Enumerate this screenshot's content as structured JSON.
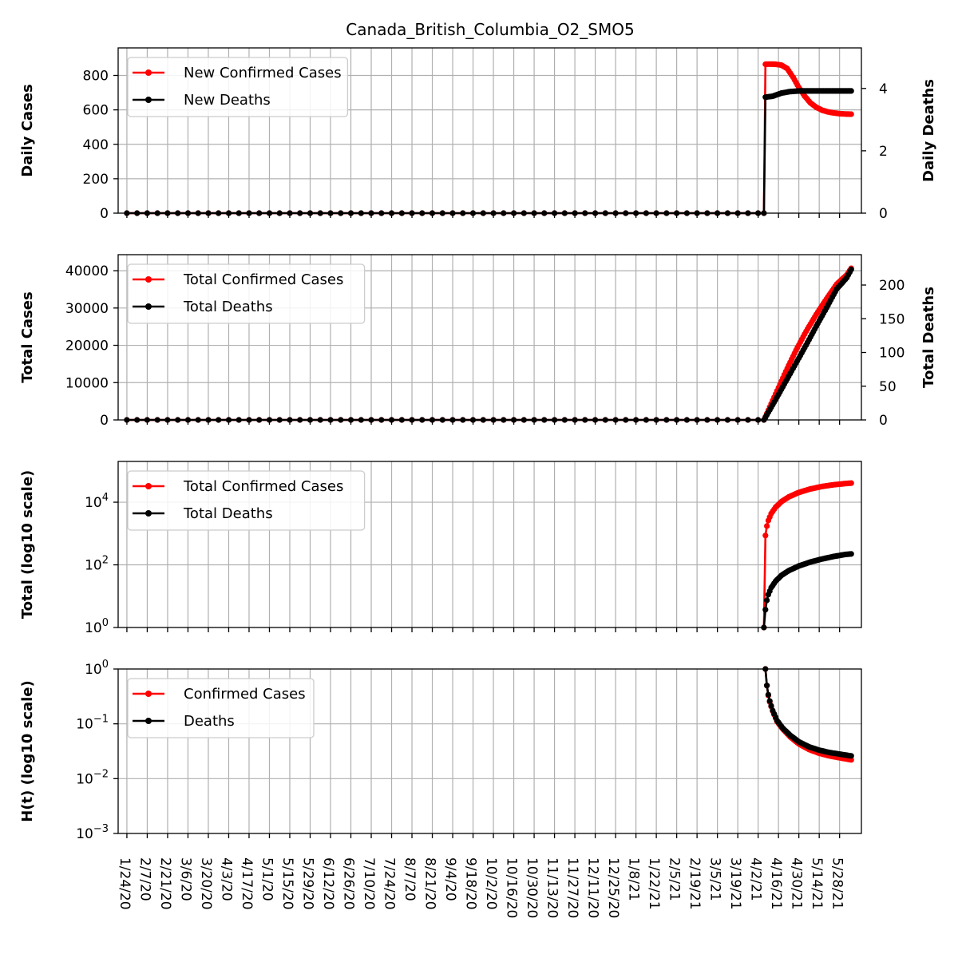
{
  "figure": {
    "title": "Canada_British_Columbia_O2_SMO5"
  },
  "chart_data": [
    {
      "type": "line",
      "id": "daily",
      "ylabel_left": "Daily Cases",
      "ylabel_right": "Daily Deaths",
      "ylim_left": [
        0,
        960
      ],
      "ylim_right": [
        0,
        5.3
      ],
      "yticks_left": [
        0,
        200,
        400,
        600,
        800
      ],
      "yticks_right": [
        0,
        2,
        4
      ],
      "grid": true,
      "legend_position": "upper-left",
      "x_dates": [
        "1/24/20",
        "2/7/20",
        "2/21/20",
        "3/6/20",
        "3/20/20",
        "4/3/20",
        "4/17/20",
        "5/1/20",
        "5/15/20",
        "5/29/20",
        "6/12/20",
        "6/26/20",
        "7/10/20",
        "7/24/20",
        "8/7/20",
        "8/21/20",
        "9/4/20",
        "9/18/20",
        "10/2/20",
        "10/16/20",
        "10/30/20",
        "11/13/20",
        "11/27/20",
        "12/11/20",
        "12/25/20",
        "1/8/21",
        "1/22/21",
        "2/5/21",
        "2/19/21",
        "3/5/21",
        "3/19/21",
        "4/2/21",
        "4/16/21",
        "4/30/21",
        "5/14/21",
        "5/28/21"
      ],
      "series": [
        {
          "name": "New Confirmed Cases",
          "axis": "left",
          "color": "#ff0000",
          "x": [
            "1/24/20",
            "4/6/21",
            "4/7/21",
            "4/10/21",
            "4/14/21",
            "4/18/21",
            "4/22/21",
            "4/26/21",
            "4/30/21",
            "5/4/21",
            "5/8/21",
            "5/12/21",
            "5/16/21",
            "5/20/21",
            "5/24/21",
            "5/28/21",
            "6/1/21",
            "6/5/21"
          ],
          "y": [
            0,
            0,
            865,
            866,
            865,
            860,
            840,
            790,
            730,
            680,
            640,
            615,
            598,
            588,
            582,
            578,
            576,
            575
          ]
        },
        {
          "name": "New Deaths",
          "axis": "right",
          "color": "#000000",
          "x": [
            "1/24/20",
            "4/6/21",
            "4/7/21",
            "4/12/21",
            "4/18/21",
            "4/24/21",
            "5/1/21",
            "5/10/21",
            "5/20/21",
            "6/5/21"
          ],
          "y": [
            0,
            0,
            3.72,
            3.75,
            3.85,
            3.9,
            3.92,
            3.92,
            3.92,
            3.92
          ]
        }
      ]
    },
    {
      "type": "line",
      "id": "total",
      "ylabel_left": "Total Cases",
      "ylabel_right": "Total Deaths",
      "ylim_left": [
        0,
        44300
      ],
      "ylim_right": [
        0,
        245
      ],
      "yticks_left": [
        0,
        10000,
        20000,
        30000,
        40000
      ],
      "yticks_right": [
        0,
        50,
        100,
        150,
        200
      ],
      "grid": true,
      "legend_position": "upper-left",
      "series": [
        {
          "name": "Total Confirmed Cases",
          "axis": "left",
          "color": "#ff0000",
          "x": [
            "1/24/20",
            "4/6/21",
            "4/7/21",
            "4/14/21",
            "4/21/21",
            "4/28/21",
            "5/5/21",
            "5/12/21",
            "5/19/21",
            "5/26/21",
            "6/2/21",
            "6/5/21"
          ],
          "y": [
            0,
            0,
            865,
            6920,
            12970,
            18650,
            23760,
            28300,
            32440,
            36380,
            38910,
            40640
          ]
        },
        {
          "name": "Total Deaths",
          "axis": "right",
          "color": "#000000",
          "x": [
            "1/24/20",
            "4/6/21",
            "4/7/21",
            "4/14/21",
            "4/21/21",
            "4/28/21",
            "5/5/21",
            "5/12/21",
            "5/19/21",
            "5/26/21",
            "6/2/21",
            "6/5/21"
          ],
          "y": [
            0,
            0,
            3.7,
            30,
            57,
            84,
            111,
            139,
            166,
            194,
            211,
            223
          ]
        }
      ]
    },
    {
      "type": "line",
      "id": "total_log",
      "ylabel_left": "Total (log10 scale)",
      "yscale": "log",
      "ylim_left": [
        1,
        200000
      ],
      "yticks_left": [
        1,
        100,
        10000
      ],
      "ytick_labels": [
        "10^0",
        "10^2",
        "10^4"
      ],
      "grid": true,
      "legend_position": "upper-left",
      "series": [
        {
          "name": "Total Confirmed Cases",
          "color": "#ff0000",
          "x": [
            "4/6/21",
            "4/7/21",
            "4/8/21",
            "4/9/21",
            "4/11/21",
            "4/14/21",
            "4/18/21",
            "4/23/21",
            "4/30/21",
            "5/8/21",
            "5/16/21",
            "5/24/21",
            "6/1/21",
            "6/5/21"
          ],
          "y": [
            1,
            865,
            1731,
            2597,
            4330,
            6920,
            10400,
            14700,
            20500,
            26500,
            31800,
            36000,
            39300,
            40640
          ]
        },
        {
          "name": "Total Deaths",
          "color": "#000000",
          "x": [
            "4/6/21",
            "4/7/21",
            "4/8/21",
            "4/9/21",
            "4/11/21",
            "4/14/21",
            "4/18/21",
            "4/23/21",
            "4/30/21",
            "5/8/21",
            "5/16/21",
            "5/24/21",
            "6/1/21",
            "6/5/21"
          ],
          "y": [
            1,
            3.7,
            7.4,
            11.2,
            18.8,
            30,
            46,
            65,
            92,
            123,
            154,
            185,
            215,
            223
          ]
        }
      ]
    },
    {
      "type": "line",
      "id": "ht_log",
      "ylabel_left": "H(t) (log10 scale)",
      "yscale": "log",
      "ylim_left": [
        0.001,
        1
      ],
      "yticks_left": [
        0.001,
        0.01,
        0.1,
        1
      ],
      "ytick_labels": [
        "10^-3",
        "10^-2",
        "10^-1",
        "10^0"
      ],
      "grid": true,
      "legend_position": "upper-left",
      "series": [
        {
          "name": "Confirmed Cases",
          "color": "#ff0000",
          "x": [
            "4/7/21",
            "4/8/21",
            "4/9/21",
            "4/10/21",
            "4/12/21",
            "4/15/21",
            "4/19/21",
            "4/24/21",
            "4/30/21",
            "5/7/21",
            "5/14/21",
            "5/21/21",
            "5/28/21",
            "6/5/21"
          ],
          "y": [
            1,
            0.5,
            0.33,
            0.25,
            0.17,
            0.11,
            0.08,
            0.058,
            0.043,
            0.034,
            0.029,
            0.026,
            0.024,
            0.022
          ]
        },
        {
          "name": "Deaths",
          "color": "#000000",
          "x": [
            "4/7/21",
            "4/8/21",
            "4/9/21",
            "4/10/21",
            "4/12/21",
            "4/15/21",
            "4/19/21",
            "4/24/21",
            "4/30/21",
            "5/7/21",
            "5/14/21",
            "5/21/21",
            "5/28/21",
            "6/5/21"
          ],
          "y": [
            1,
            0.5,
            0.34,
            0.26,
            0.175,
            0.115,
            0.083,
            0.062,
            0.047,
            0.038,
            0.033,
            0.03,
            0.028,
            0.026
          ]
        }
      ]
    }
  ]
}
